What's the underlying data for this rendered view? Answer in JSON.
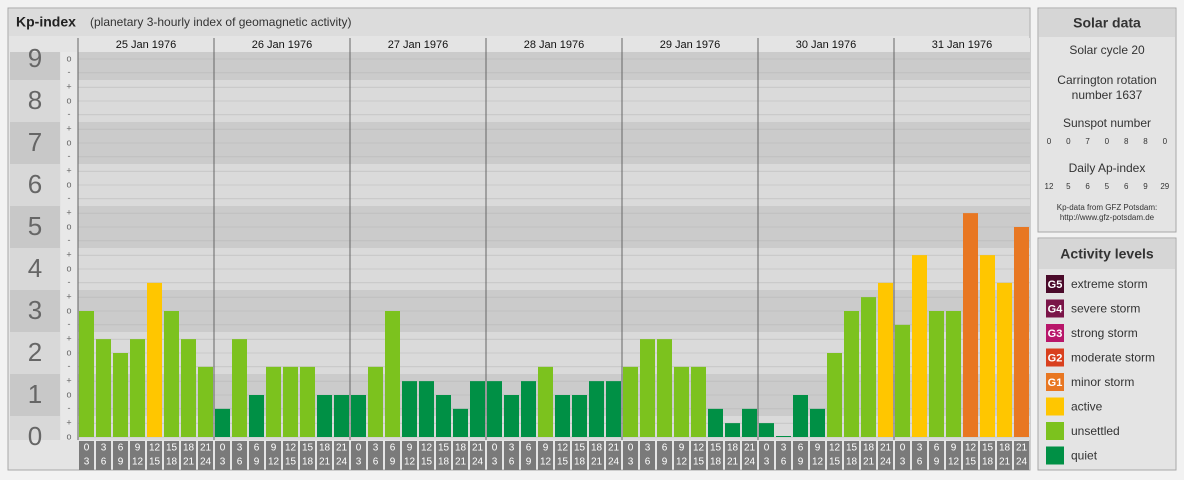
{
  "chart_data": {
    "type": "bar",
    "title": "Kp-index",
    "subtitle": "(planetary 3-hourly index of geomagnetic activity)",
    "days": [
      "25 Jan 1976",
      "26 Jan 1976",
      "27 Jan 1976",
      "28 Jan 1976",
      "29 Jan 1976",
      "30 Jan 1976",
      "31 Jan 1976"
    ],
    "hour_ranges": [
      [
        "0",
        "3"
      ],
      [
        "3",
        "6"
      ],
      [
        "6",
        "9"
      ],
      [
        "9",
        "12"
      ],
      [
        "12",
        "15"
      ],
      [
        "15",
        "18"
      ],
      [
        "18",
        "21"
      ],
      [
        "21",
        "24"
      ]
    ],
    "values": [
      3,
      2.33,
      2,
      2.33,
      3.67,
      3,
      2.33,
      1.67,
      0.67,
      2.33,
      1,
      1.67,
      1.67,
      1.67,
      1,
      1,
      1,
      1.67,
      3,
      1.33,
      1.33,
      1,
      0.67,
      1.33,
      1.33,
      1,
      1.33,
      1.67,
      1,
      1,
      1.33,
      1.33,
      1.67,
      2.33,
      2.33,
      1.67,
      1.67,
      0.67,
      0.33,
      0.67,
      0.33,
      0,
      1,
      0.67,
      2,
      3,
      3.33,
      3.67,
      2.67,
      4.33,
      3,
      3,
      5.33,
      4.33,
      3.67,
      5
    ],
    "colors": [
      "#7cc21e",
      "#7cc21e",
      "#7cc21e",
      "#7cc21e",
      "#ffc600",
      "#7cc21e",
      "#7cc21e",
      "#7cc21e",
      "#009045",
      "#7cc21e",
      "#009045",
      "#7cc21e",
      "#7cc21e",
      "#7cc21e",
      "#009045",
      "#009045",
      "#009045",
      "#7cc21e",
      "#7cc21e",
      "#009045",
      "#009045",
      "#009045",
      "#009045",
      "#009045",
      "#009045",
      "#009045",
      "#009045",
      "#7cc21e",
      "#009045",
      "#009045",
      "#009045",
      "#009045",
      "#7cc21e",
      "#7cc21e",
      "#7cc21e",
      "#7cc21e",
      "#7cc21e",
      "#009045",
      "#009045",
      "#009045",
      "#009045",
      "#009045",
      "#009045",
      "#009045",
      "#7cc21e",
      "#7cc21e",
      "#7cc21e",
      "#ffc600",
      "#7cc21e",
      "#ffc600",
      "#7cc21e",
      "#7cc21e",
      "#e87722",
      "#ffc600",
      "#ffc600",
      "#e87722"
    ],
    "ylim": [
      0,
      9
    ],
    "yticks": [
      0,
      1,
      2,
      3,
      4,
      5,
      6,
      7,
      8,
      9
    ],
    "minor_yticks": [
      {
        "value": 0,
        "label": "o"
      },
      {
        "value": 0.33,
        "label": "+"
      },
      {
        "value": 0.67,
        "label": "-"
      },
      {
        "value": 1,
        "label": "o"
      },
      {
        "value": 1.33,
        "label": "+"
      },
      {
        "value": 1.67,
        "label": "-"
      },
      {
        "value": 2,
        "label": "o"
      },
      {
        "value": 2.33,
        "label": "+"
      },
      {
        "value": 2.67,
        "label": "-"
      },
      {
        "value": 3,
        "label": "o"
      },
      {
        "value": 3.33,
        "label": "+"
      },
      {
        "value": 3.67,
        "label": "-"
      },
      {
        "value": 4,
        "label": "o"
      },
      {
        "value": 4.33,
        "label": "+"
      },
      {
        "value": 4.67,
        "label": "-"
      },
      {
        "value": 5,
        "label": "o"
      },
      {
        "value": 5.33,
        "label": "+"
      },
      {
        "value": 5.67,
        "label": "-"
      },
      {
        "value": 6,
        "label": "o"
      },
      {
        "value": 6.33,
        "label": "+"
      },
      {
        "value": 6.67,
        "label": "-"
      },
      {
        "value": 7,
        "label": "o"
      },
      {
        "value": 7.33,
        "label": "+"
      },
      {
        "value": 7.67,
        "label": "-"
      },
      {
        "value": 8,
        "label": "o"
      },
      {
        "value": 8.33,
        "label": "+"
      },
      {
        "value": 8.67,
        "label": "-"
      },
      {
        "value": 9,
        "label": "o"
      }
    ],
    "grid": true
  },
  "solar_data": {
    "title": "Solar data",
    "solar_cycle": "Solar cycle 20",
    "carrington_line1": "Carrington rotation",
    "carrington_line2": "number 1637",
    "sunspot_title": "Sunspot number",
    "sunspot_numbers": [
      0,
      0,
      7,
      0,
      8,
      8,
      0
    ],
    "ap_title": "Daily Ap-index",
    "ap_values": [
      12,
      5,
      6,
      5,
      6,
      9,
      29
    ],
    "source": "Kp-data from GFZ Potsdam:",
    "source_url": "http://www.gfz-potsdam.de"
  },
  "activity_levels": {
    "title": "Activity levels",
    "items": [
      {
        "badge": "G5",
        "label": "extreme storm",
        "color": "#4a0a2a"
      },
      {
        "badge": "G4",
        "label": "severe storm",
        "color": "#7a1448"
      },
      {
        "badge": "G3",
        "label": "strong storm",
        "color": "#b8166a"
      },
      {
        "badge": "G2",
        "label": "moderate storm",
        "color": "#d9401e"
      },
      {
        "badge": "G1",
        "label": "minor storm",
        "color": "#e87722"
      },
      {
        "label": "active",
        "color": "#ffc600"
      },
      {
        "label": "unsettled",
        "color": "#7cc21e"
      },
      {
        "label": "quiet",
        "color": "#009045"
      }
    ]
  }
}
